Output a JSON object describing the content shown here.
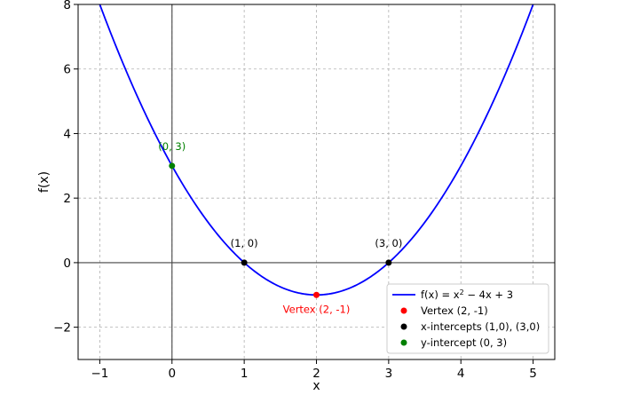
{
  "chart_data": {
    "type": "line",
    "title": "",
    "xlabel": "x",
    "ylabel": "f(x)",
    "xlim": [
      -1.3,
      5.3
    ],
    "ylim": [
      -3,
      8
    ],
    "xticks": [
      -1,
      0,
      1,
      2,
      3,
      4,
      5
    ],
    "yticks": [
      -2,
      0,
      2,
      4,
      6,
      8
    ],
    "xtick_labels": [
      "−1",
      "0",
      "1",
      "2",
      "3",
      "4",
      "5"
    ],
    "ytick_labels": [
      "−2",
      "0",
      "2",
      "4",
      "6",
      "8"
    ],
    "grid": true,
    "legend_position": "bottom-right",
    "series": [
      {
        "name": "f(x) = x² − 4x + 3",
        "formula": "x^2 - 4x + 3",
        "color": "#0000ff",
        "x_range": [
          -1,
          5
        ]
      }
    ],
    "points": [
      {
        "x": 2,
        "y": -1,
        "label": "Vertex (2, -1)",
        "color": "#ff0000",
        "label_pos": "below"
      },
      {
        "x": 1,
        "y": 0,
        "label": "(1, 0)",
        "color": "#000000",
        "label_pos": "above"
      },
      {
        "x": 3,
        "y": 0,
        "label": "(3, 0)",
        "color": "#000000",
        "label_pos": "above"
      },
      {
        "x": 0,
        "y": 3,
        "label": "(0, 3)",
        "color": "#008000",
        "label_pos": "above"
      }
    ],
    "legend": [
      {
        "kind": "line",
        "color": "#0000ff",
        "label_prefix": "f(x) = x",
        "label_sup": "2",
        "label_suffix": " − 4x + 3"
      },
      {
        "kind": "dot",
        "color": "#ff0000",
        "label": "Vertex (2, -1)"
      },
      {
        "kind": "dot",
        "color": "#000000",
        "label": "x-intercepts (1,0), (3,0)"
      },
      {
        "kind": "dot",
        "color": "#008000",
        "label": "y-intercept (0, 3)"
      }
    ]
  }
}
